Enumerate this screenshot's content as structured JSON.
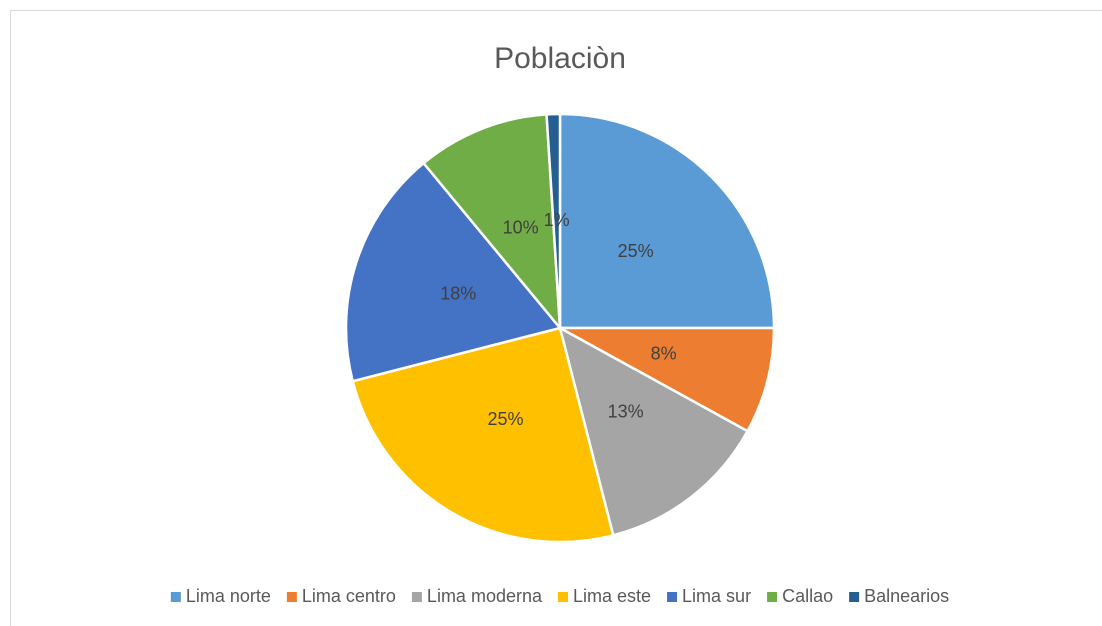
{
  "chart_data": {
    "type": "pie",
    "title": "Poblaciòn",
    "categories": [
      "Lima norte",
      "Lima centro",
      "Lima moderna",
      "Lima este",
      "Lima sur",
      "Callao",
      "Balnearios"
    ],
    "values": [
      25,
      8,
      13,
      25,
      18,
      10,
      1
    ],
    "value_labels": [
      "25%",
      "8%",
      "13%",
      "25%",
      "18%",
      "10%",
      "1%"
    ],
    "colors": [
      "#5b9bd5",
      "#ed7d31",
      "#a5a5a5",
      "#ffc000",
      "#4472c4",
      "#70ad47",
      "#255e91"
    ],
    "legend": "bottom"
  }
}
